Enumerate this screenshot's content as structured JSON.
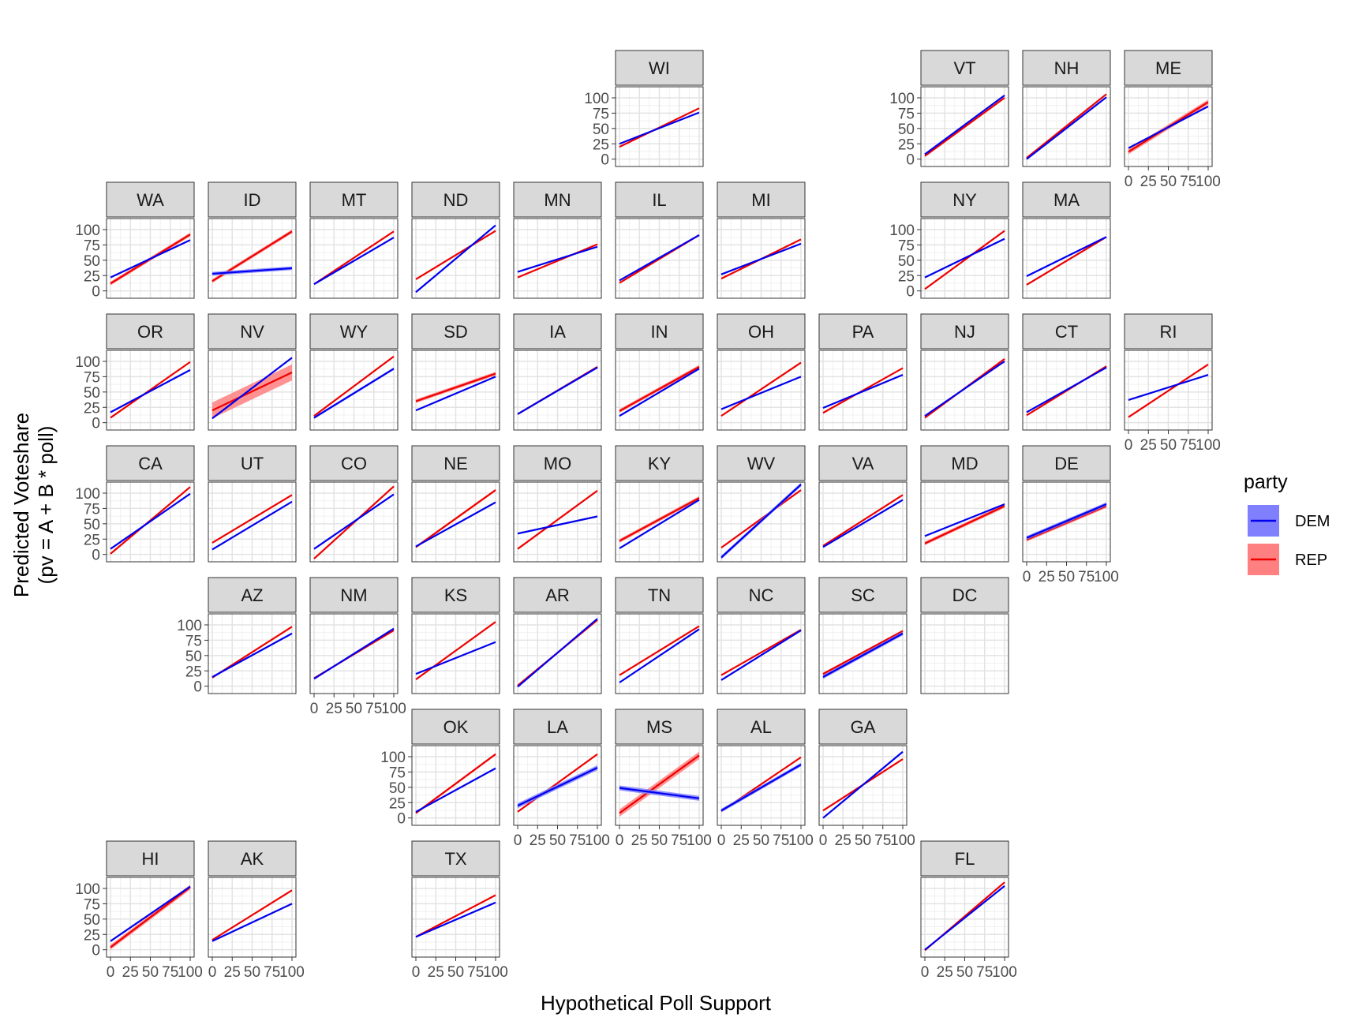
{
  "chart_data": {
    "type": "line",
    "xlabel": "Hypothetical Poll Support",
    "ylabel_lines": [
      "Predicted Voteshare",
      "(pv = A + B * poll)"
    ],
    "xlim": [
      0,
      100
    ],
    "ylim": [
      0,
      100
    ],
    "x_ticks": [
      "0",
      "25",
      "50",
      "75",
      "100"
    ],
    "y_ticks": [
      "0",
      "25",
      "50",
      "75",
      "100"
    ],
    "grid": true,
    "legend": {
      "title": "party",
      "position": "right",
      "entries": [
        {
          "name": "DEM",
          "line_color": "#0000ee",
          "fill_color": "#8080ff"
        },
        {
          "name": "REP",
          "line_color": "#ee0000",
          "fill_color": "#ff8080"
        }
      ]
    },
    "series_note": "each panel: y at x=0 and x=100 for DEM and REP; band = +/- ribbon half-width",
    "panels": [
      {
        "state": "WI",
        "dem": [
          25,
          76
        ],
        "rep": [
          20,
          83
        ]
      },
      {
        "state": "VT",
        "dem": [
          8,
          104
        ],
        "rep": [
          5,
          100
        ]
      },
      {
        "state": "NH",
        "dem": [
          0,
          101
        ],
        "rep": [
          2,
          106
        ]
      },
      {
        "state": "ME",
        "dem": [
          18,
          86
        ],
        "rep": [
          12,
          93
        ],
        "rep_band": 4
      },
      {
        "state": "WA",
        "dem": [
          22,
          83
        ],
        "rep": [
          12,
          92
        ],
        "rep_band": 3
      },
      {
        "state": "ID",
        "dem": [
          28,
          37
        ],
        "rep": [
          16,
          97
        ],
        "dem_band": 3,
        "rep_band": 3
      },
      {
        "state": "MT",
        "dem": [
          11,
          87
        ],
        "rep": [
          11,
          97
        ]
      },
      {
        "state": "ND",
        "dem": [
          -2,
          107
        ],
        "rep": [
          19,
          98
        ]
      },
      {
        "state": "MN",
        "dem": [
          31,
          72
        ],
        "rep": [
          22,
          76
        ]
      },
      {
        "state": "IL",
        "dem": [
          17,
          91
        ],
        "rep": [
          13,
          91
        ]
      },
      {
        "state": "MI",
        "dem": [
          27,
          77
        ],
        "rep": [
          20,
          84
        ]
      },
      {
        "state": "NY",
        "dem": [
          22,
          85
        ],
        "rep": [
          3,
          98
        ]
      },
      {
        "state": "MA",
        "dem": [
          24,
          88
        ],
        "rep": [
          10,
          88
        ]
      },
      {
        "state": "OR",
        "dem": [
          17,
          86
        ],
        "rep": [
          8,
          99
        ]
      },
      {
        "state": "NV",
        "dem": [
          7,
          106
        ],
        "rep": [
          20,
          82
        ],
        "rep_band": 13
      },
      {
        "state": "WY",
        "dem": [
          8,
          88
        ],
        "rep": [
          11,
          108
        ],
        "dem_band": 2
      },
      {
        "state": "SD",
        "dem": [
          20,
          75
        ],
        "rep": [
          35,
          80
        ],
        "rep_band": 3
      },
      {
        "state": "IA",
        "dem": [
          14,
          90
        ],
        "rep": [
          14,
          91
        ]
      },
      {
        "state": "IN",
        "dem": [
          11,
          88
        ],
        "rep": [
          19,
          91
        ],
        "rep_band": 3
      },
      {
        "state": "OH",
        "dem": [
          22,
          75
        ],
        "rep": [
          11,
          98
        ]
      },
      {
        "state": "PA",
        "dem": [
          24,
          78
        ],
        "rep": [
          16,
          89
        ]
      },
      {
        "state": "NJ",
        "dem": [
          11,
          100
        ],
        "rep": [
          8,
          104
        ]
      },
      {
        "state": "CT",
        "dem": [
          17,
          90
        ],
        "rep": [
          12,
          92
        ]
      },
      {
        "state": "RI",
        "dem": [
          37,
          78
        ],
        "rep": [
          9,
          95
        ]
      },
      {
        "state": "CA",
        "dem": [
          9,
          99
        ],
        "rep": [
          1,
          110
        ]
      },
      {
        "state": "UT",
        "dem": [
          8,
          86
        ],
        "rep": [
          19,
          97
        ]
      },
      {
        "state": "CO",
        "dem": [
          9,
          98
        ],
        "rep": [
          -7,
          111
        ]
      },
      {
        "state": "NE",
        "dem": [
          13,
          85
        ],
        "rep": [
          12,
          105
        ],
        "rep_band": 2
      },
      {
        "state": "MO",
        "dem": [
          34,
          62
        ],
        "rep": [
          9,
          104
        ]
      },
      {
        "state": "KY",
        "dem": [
          10,
          89
        ],
        "rep": [
          22,
          92
        ],
        "rep_band": 3
      },
      {
        "state": "WV",
        "dem": [
          -5,
          114
        ],
        "rep": [
          11,
          105
        ],
        "dem_band": 3
      },
      {
        "state": "VA",
        "dem": [
          12,
          89
        ],
        "rep": [
          14,
          97
        ]
      },
      {
        "state": "MD",
        "dem": [
          30,
          82
        ],
        "rep": [
          18,
          79
        ],
        "rep_band": 3
      },
      {
        "state": "DE",
        "dem": [
          27,
          82
        ],
        "rep": [
          24,
          79
        ],
        "dem_band": 3,
        "rep_band": 3
      },
      {
        "state": "AZ",
        "dem": [
          15,
          86
        ],
        "rep": [
          14,
          97
        ]
      },
      {
        "state": "NM",
        "dem": [
          12,
          94
        ],
        "rep": [
          13,
          91
        ]
      },
      {
        "state": "KS",
        "dem": [
          20,
          72
        ],
        "rep": [
          11,
          105
        ]
      },
      {
        "state": "AR",
        "dem": [
          -1,
          110
        ],
        "rep": [
          1,
          108
        ]
      },
      {
        "state": "TN",
        "dem": [
          6,
          93
        ],
        "rep": [
          18,
          98
        ]
      },
      {
        "state": "NC",
        "dem": [
          10,
          91
        ],
        "rep": [
          18,
          92
        ]
      },
      {
        "state": "SC",
        "dem": [
          15,
          86
        ],
        "rep": [
          20,
          90
        ],
        "dem_band": 3,
        "rep_band": 2
      },
      {
        "state": "DC"
      },
      {
        "state": "OK",
        "dem": [
          10,
          81
        ],
        "rep": [
          8,
          104
        ],
        "rep_band": 2
      },
      {
        "state": "LA",
        "dem": [
          20,
          82
        ],
        "rep": [
          10,
          104
        ],
        "dem_band": 4
      },
      {
        "state": "MS",
        "dem": [
          49,
          32
        ],
        "rep": [
          8,
          102
        ],
        "dem_band": 4,
        "rep_band": 6
      },
      {
        "state": "AL",
        "dem": [
          12,
          87
        ],
        "rep": [
          11,
          99
        ],
        "dem_band": 3
      },
      {
        "state": "GA",
        "dem": [
          0,
          108
        ],
        "rep": [
          12,
          96
        ]
      },
      {
        "state": "HI",
        "dem": [
          14,
          103
        ],
        "rep": [
          4,
          102
        ],
        "rep_band": 4
      },
      {
        "state": "AK",
        "dem": [
          14,
          75
        ],
        "rep": [
          16,
          97
        ]
      },
      {
        "state": "TX",
        "dem": [
          21,
          77
        ],
        "rep": [
          21,
          89
        ]
      },
      {
        "state": "FL",
        "dem": [
          0,
          104
        ],
        "rep": [
          -1,
          110
        ]
      }
    ]
  }
}
